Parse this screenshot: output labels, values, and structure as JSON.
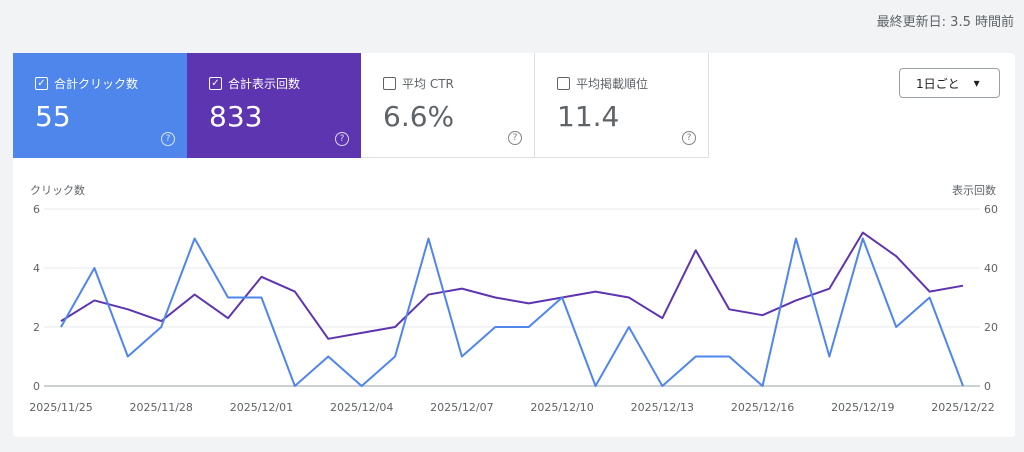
{
  "updated": "最終更新日: 3.5 時間前",
  "metrics": [
    {
      "label": "合計クリック数",
      "value": "55",
      "checked": true,
      "color": "#4e86ec"
    },
    {
      "label": "合計表示回数",
      "value": "833",
      "checked": true,
      "color": "#5e35b1"
    },
    {
      "label": "平均 CTR",
      "value": "6.6%",
      "checked": false
    },
    {
      "label": "平均掲載順位",
      "value": "11.4",
      "checked": false
    }
  ],
  "help_icon": "?",
  "check_icon": "✓",
  "granularity": {
    "selected": "1日ごと",
    "icon": "▾"
  },
  "chart_data": {
    "type": "line",
    "left_axis_label": "クリック数",
    "right_axis_label": "表示回数",
    "left_ylim": [
      0,
      6
    ],
    "left_ticks": [
      "0",
      "2",
      "4",
      "6"
    ],
    "right_ylim": [
      0,
      60
    ],
    "right_ticks": [
      "0",
      "20",
      "40",
      "60"
    ],
    "grid": true,
    "x_tick_labels": [
      "2025/11/25",
      "2025/11/28",
      "2025/12/01",
      "2025/12/04",
      "2025/12/07",
      "2025/12/10",
      "2025/12/13",
      "2025/12/16",
      "2025/12/19",
      "2025/12/22"
    ],
    "x_start": "2025/11/25",
    "x_end": "2025/12/22",
    "series": [
      {
        "name": "合計クリック数",
        "axis": "left",
        "color": "#4e86ec",
        "values": [
          2,
          4,
          1,
          2,
          5,
          3,
          3,
          0,
          1,
          0,
          1,
          5,
          1,
          2,
          2,
          3,
          0,
          2,
          0,
          1,
          1,
          0,
          5,
          1,
          5,
          2,
          3,
          0
        ]
      },
      {
        "name": "合計表示回数",
        "axis": "right",
        "color": "#5e35b1",
        "values": [
          22,
          29,
          26,
          22,
          31,
          23,
          37,
          32,
          16,
          18,
          20,
          31,
          33,
          30,
          28,
          30,
          32,
          30,
          23,
          46,
          26,
          24,
          29,
          33,
          52,
          44,
          32,
          34
        ]
      }
    ]
  }
}
